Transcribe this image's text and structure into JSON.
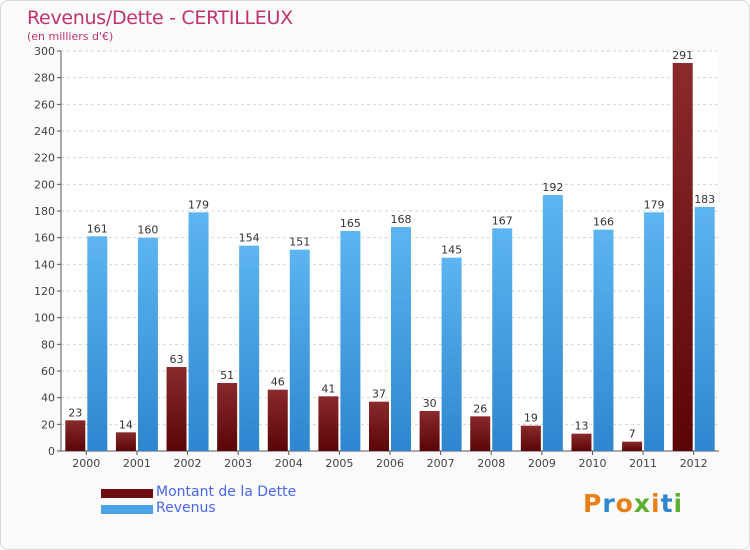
{
  "header": {
    "title": "Revenus/Dette - CERTILLEUX",
    "subtitle": "(en milliers d'€)"
  },
  "colors": {
    "dette": "#6b0d12",
    "revenus": "#4aa3e6",
    "title": "#c0336b",
    "legend_text": "#4a67e8"
  },
  "legend": {
    "items": [
      {
        "label": "Montant de la Dette",
        "color": "#6b0d12"
      },
      {
        "label": "Revenus",
        "color": "#4aa3e6"
      }
    ]
  },
  "logo": {
    "text": "Proxiti"
  },
  "chart_data": {
    "type": "bar",
    "title": "Revenus/Dette - CERTILLEUX",
    "subtitle": "(en milliers d'€)",
    "categories": [
      "2000",
      "2001",
      "2002",
      "2003",
      "2004",
      "2005",
      "2006",
      "2007",
      "2008",
      "2009",
      "2010",
      "2011",
      "2012"
    ],
    "series": [
      {
        "name": "Montant de la Dette",
        "values": [
          23,
          14,
          63,
          51,
          46,
          41,
          37,
          30,
          26,
          19,
          13,
          7,
          291
        ]
      },
      {
        "name": "Revenus",
        "values": [
          161,
          160,
          179,
          154,
          151,
          165,
          168,
          145,
          167,
          192,
          166,
          179,
          183
        ]
      }
    ],
    "ylim": [
      0,
      300
    ],
    "yticks": [
      0,
      20,
      40,
      60,
      80,
      100,
      120,
      140,
      160,
      180,
      200,
      220,
      240,
      260,
      280,
      300
    ],
    "grid": true,
    "legend_position": "bottom-left"
  }
}
